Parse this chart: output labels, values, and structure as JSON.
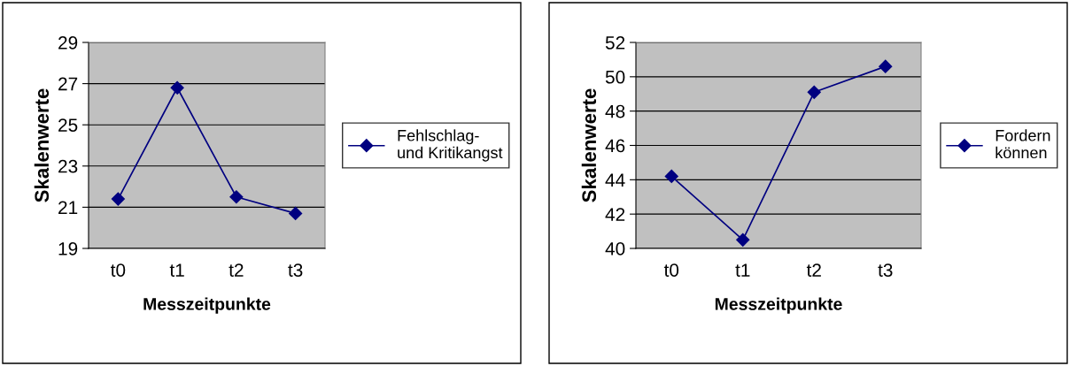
{
  "chart_data": [
    {
      "type": "line",
      "xlabel": "Messzeitpunkte",
      "ylabel": "Skalenwerte",
      "categories": [
        "t0",
        "t1",
        "t2",
        "t3"
      ],
      "series": [
        {
          "name": "Fehlschlag-\nund Kritikangst",
          "color": "#000080",
          "values": [
            21.4,
            26.8,
            21.5,
            20.7
          ]
        }
      ],
      "ylim": [
        19,
        29
      ],
      "yticks": [
        19,
        21,
        23,
        25,
        27,
        29
      ],
      "grid": "y",
      "legend": "right",
      "marker": "diamond",
      "line_style": "solid"
    },
    {
      "type": "line",
      "xlabel": "Messzeitpunkte",
      "ylabel": "Skalenwerte",
      "categories": [
        "t0",
        "t1",
        "t2",
        "t3"
      ],
      "series": [
        {
          "name": "Fordern\nkönnen",
          "color": "#000080",
          "values": [
            44.2,
            40.5,
            49.1,
            50.6
          ]
        }
      ],
      "ylim": [
        40,
        52
      ],
      "yticks": [
        40,
        42,
        44,
        46,
        48,
        50,
        52
      ],
      "grid": "y",
      "legend": "right",
      "marker": "diamond",
      "line_style": "solid"
    }
  ]
}
